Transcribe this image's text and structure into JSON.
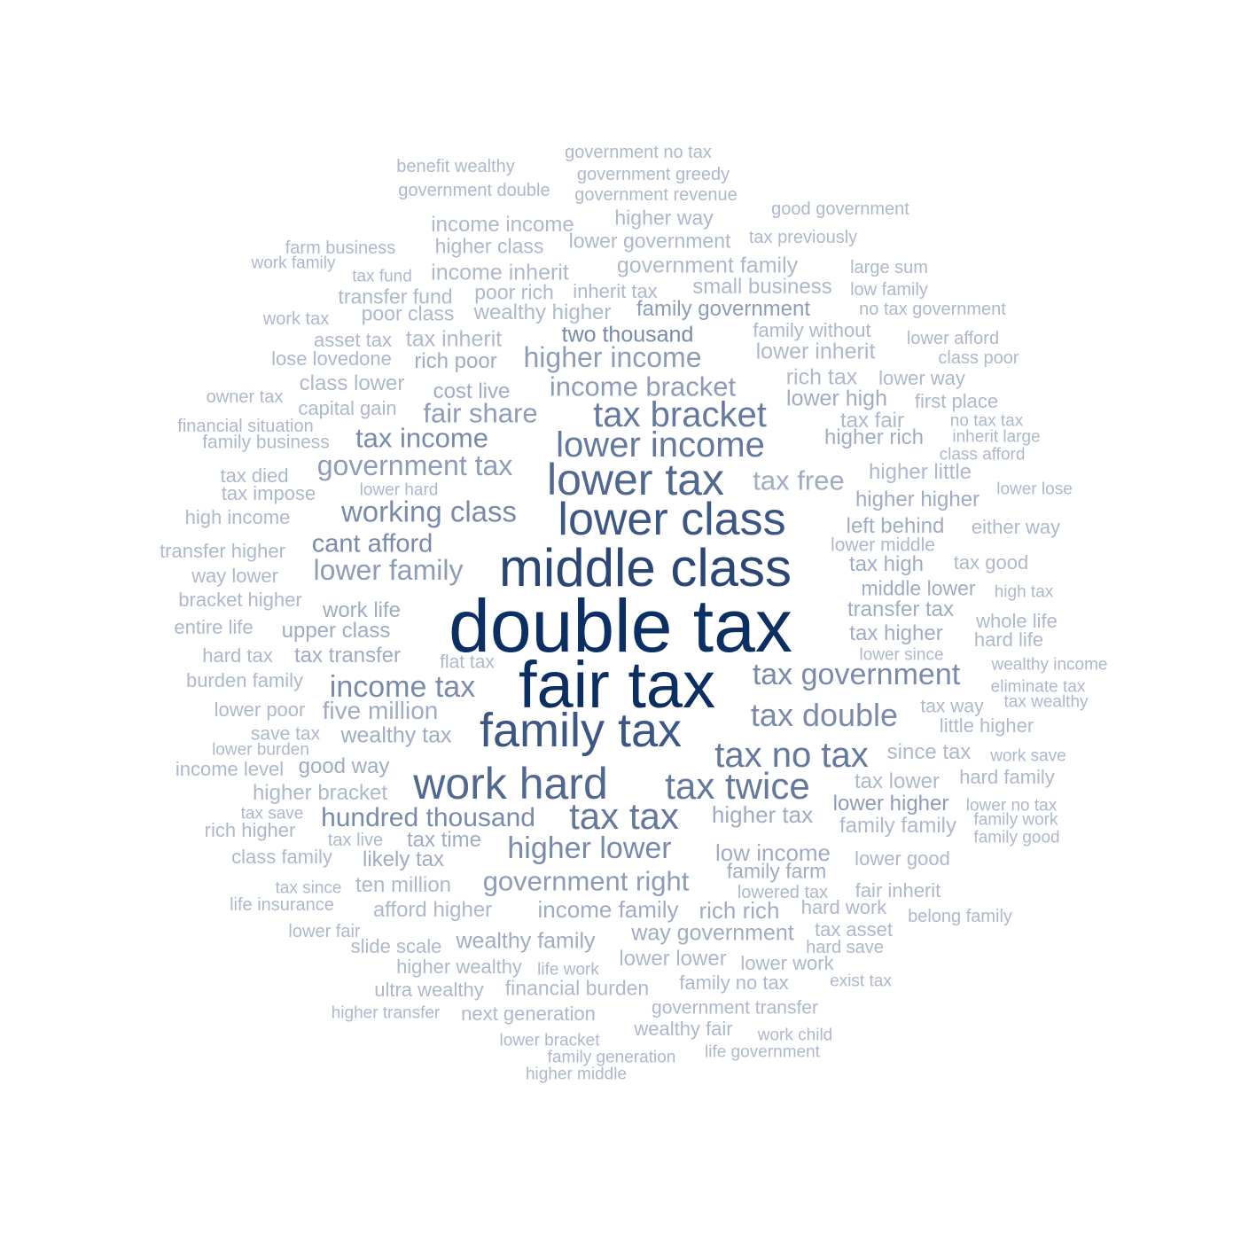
{
  "colors": {
    "background": "#ffffff",
    "tier1": "#0b2e63",
    "tier2": "#2a4675",
    "tier3": "#3d5785",
    "tier4": "#51688f",
    "tier5": "#64799c",
    "tier6": "#7a8ba9",
    "tier7": "#8e9cb6",
    "tier8": "#a0acc2",
    "tier9": "#aeb8cb"
  },
  "words": [
    {
      "text": "double tax",
      "tier": 1
    },
    {
      "text": "fair tax",
      "tier": 1
    },
    {
      "text": "middle class",
      "tier": 2
    },
    {
      "text": "family tax",
      "tier": 3
    },
    {
      "text": "lower class",
      "tier": 3
    },
    {
      "text": "lower tax",
      "tier": 4
    },
    {
      "text": "work hard",
      "tier": 4
    },
    {
      "text": "tax tax",
      "tier": 5
    },
    {
      "text": "tax twice",
      "tier": 5
    },
    {
      "text": "tax bracket",
      "tier": 5
    },
    {
      "text": "lower income",
      "tier": 5
    },
    {
      "text": "tax no tax",
      "tier": 5
    },
    {
      "text": "tax double",
      "tier": 6
    },
    {
      "text": "tax government",
      "tier": 6
    },
    {
      "text": "higher lower",
      "tier": 6
    },
    {
      "text": "income tax",
      "tier": 6
    },
    {
      "text": "working class",
      "tier": 6
    },
    {
      "text": "lower family",
      "tier": 7
    },
    {
      "text": "government tax",
      "tier": 7
    },
    {
      "text": "hundred thousand",
      "tier": 6
    },
    {
      "text": "government right",
      "tier": 7
    },
    {
      "text": "higher income",
      "tier": 7
    },
    {
      "text": "income bracket",
      "tier": 7
    },
    {
      "text": "fair share",
      "tier": 7
    },
    {
      "text": "tax income",
      "tier": 6
    },
    {
      "text": "cant afford",
      "tier": 6
    },
    {
      "text": "tax free",
      "tier": 8
    },
    {
      "text": "two thousand",
      "tier": 6
    },
    {
      "text": "government no tax",
      "tier": 9
    },
    {
      "text": "benefit wealthy",
      "tier": 9
    },
    {
      "text": "government greedy",
      "tier": 9
    },
    {
      "text": "government double",
      "tier": 9
    },
    {
      "text": "government revenue",
      "tier": 9
    },
    {
      "text": "income income",
      "tier": 9
    },
    {
      "text": "higher way",
      "tier": 9
    },
    {
      "text": "good government",
      "tier": 9
    },
    {
      "text": "higher class",
      "tier": 9
    },
    {
      "text": "lower government",
      "tier": 9
    },
    {
      "text": "tax previously",
      "tier": 9
    },
    {
      "text": "farm business",
      "tier": 9
    },
    {
      "text": "work family",
      "tier": 9
    },
    {
      "text": "tax fund",
      "tier": 9
    },
    {
      "text": "income inherit",
      "tier": 9
    },
    {
      "text": "government family",
      "tier": 9
    },
    {
      "text": "large sum",
      "tier": 9
    },
    {
      "text": "transfer fund",
      "tier": 9
    },
    {
      "text": "poor rich",
      "tier": 9
    },
    {
      "text": "inherit tax",
      "tier": 9
    },
    {
      "text": "small business",
      "tier": 9
    },
    {
      "text": "low family",
      "tier": 9
    },
    {
      "text": "work tax",
      "tier": 9
    },
    {
      "text": "poor class",
      "tier": 9
    },
    {
      "text": "wealthy higher",
      "tier": 9
    },
    {
      "text": "family government",
      "tier": 7
    },
    {
      "text": "no tax government",
      "tier": 9
    },
    {
      "text": "asset tax",
      "tier": 9
    },
    {
      "text": "tax inherit",
      "tier": 9
    },
    {
      "text": "family without",
      "tier": 9
    },
    {
      "text": "lower afford",
      "tier": 9
    },
    {
      "text": "lose lovedone",
      "tier": 9
    },
    {
      "text": "rich poor",
      "tier": 8
    },
    {
      "text": "lower inherit",
      "tier": 9
    },
    {
      "text": "class poor",
      "tier": 9
    },
    {
      "text": "owner tax",
      "tier": 9
    },
    {
      "text": "class lower",
      "tier": 9
    },
    {
      "text": "cost live",
      "tier": 8
    },
    {
      "text": "rich tax",
      "tier": 9
    },
    {
      "text": "lower way",
      "tier": 9
    },
    {
      "text": "capital gain",
      "tier": 9
    },
    {
      "text": "lower high",
      "tier": 8
    },
    {
      "text": "first place",
      "tier": 9
    },
    {
      "text": "financial situation",
      "tier": 9
    },
    {
      "text": "tax fair",
      "tier": 9
    },
    {
      "text": "no tax tax",
      "tier": 9
    },
    {
      "text": "family business",
      "tier": 9
    },
    {
      "text": "higher rich",
      "tier": 8
    },
    {
      "text": "inherit large",
      "tier": 9
    },
    {
      "text": "class afford",
      "tier": 9
    },
    {
      "text": "tax died",
      "tier": 9
    },
    {
      "text": "higher little",
      "tier": 9
    },
    {
      "text": "tax impose",
      "tier": 9
    },
    {
      "text": "lower hard",
      "tier": 9
    },
    {
      "text": "lower lose",
      "tier": 9
    },
    {
      "text": "higher higher",
      "tier": 8
    },
    {
      "text": "high income",
      "tier": 9
    },
    {
      "text": "left behind",
      "tier": 8
    },
    {
      "text": "either way",
      "tier": 9
    },
    {
      "text": "transfer higher",
      "tier": 9
    },
    {
      "text": "lower middle",
      "tier": 9
    },
    {
      "text": "tax high",
      "tier": 8
    },
    {
      "text": "tax good",
      "tier": 9
    },
    {
      "text": "way lower",
      "tier": 9
    },
    {
      "text": "middle lower",
      "tier": 8
    },
    {
      "text": "high tax",
      "tier": 9
    },
    {
      "text": "bracket higher",
      "tier": 9
    },
    {
      "text": "work life",
      "tier": 8
    },
    {
      "text": "transfer tax",
      "tier": 8
    },
    {
      "text": "whole life",
      "tier": 9
    },
    {
      "text": "entire life",
      "tier": 9
    },
    {
      "text": "upper class",
      "tier": 8
    },
    {
      "text": "tax higher",
      "tier": 8
    },
    {
      "text": "hard life",
      "tier": 9
    },
    {
      "text": "hard tax",
      "tier": 9
    },
    {
      "text": "tax transfer",
      "tier": 8
    },
    {
      "text": "flat tax",
      "tier": 9
    },
    {
      "text": "lower since",
      "tier": 9
    },
    {
      "text": "wealthy income",
      "tier": 9
    },
    {
      "text": "burden family",
      "tier": 9
    },
    {
      "text": "eliminate tax",
      "tier": 9
    },
    {
      "text": "lower poor",
      "tier": 9
    },
    {
      "text": "five million",
      "tier": 8
    },
    {
      "text": "tax way",
      "tier": 9
    },
    {
      "text": "tax wealthy",
      "tier": 9
    },
    {
      "text": "save tax",
      "tier": 9
    },
    {
      "text": "wealthy tax",
      "tier": 8
    },
    {
      "text": "little higher",
      "tier": 9
    },
    {
      "text": "lower burden",
      "tier": 9
    },
    {
      "text": "since tax",
      "tier": 9
    },
    {
      "text": "work save",
      "tier": 9
    },
    {
      "text": "income level",
      "tier": 9
    },
    {
      "text": "good way",
      "tier": 8
    },
    {
      "text": "tax lower",
      "tier": 9
    },
    {
      "text": "hard family",
      "tier": 9
    },
    {
      "text": "higher bracket",
      "tier": 9
    },
    {
      "text": "tax save",
      "tier": 9
    },
    {
      "text": "higher tax",
      "tier": 8
    },
    {
      "text": "lower higher",
      "tier": 7
    },
    {
      "text": "lower no tax",
      "tier": 9
    },
    {
      "text": "family work",
      "tier": 9
    },
    {
      "text": "rich higher",
      "tier": 9
    },
    {
      "text": "tax live",
      "tier": 9
    },
    {
      "text": "tax time",
      "tier": 8
    },
    {
      "text": "family family",
      "tier": 9
    },
    {
      "text": "family good",
      "tier": 9
    },
    {
      "text": "class family",
      "tier": 9
    },
    {
      "text": "likely tax",
      "tier": 8
    },
    {
      "text": "low income",
      "tier": 8
    },
    {
      "text": "lower good",
      "tier": 9
    },
    {
      "text": "family farm",
      "tier": 8
    },
    {
      "text": "tax since",
      "tier": 9
    },
    {
      "text": "ten million",
      "tier": 9
    },
    {
      "text": "lowered tax",
      "tier": 9
    },
    {
      "text": "fair inherit",
      "tier": 9
    },
    {
      "text": "life insurance",
      "tier": 9
    },
    {
      "text": "afford higher",
      "tier": 9
    },
    {
      "text": "income family",
      "tier": 8
    },
    {
      "text": "rich rich",
      "tier": 8
    },
    {
      "text": "hard work",
      "tier": 9
    },
    {
      "text": "belong family",
      "tier": 9
    },
    {
      "text": "lower fair",
      "tier": 9
    },
    {
      "text": "way government",
      "tier": 8
    },
    {
      "text": "tax asset",
      "tier": 9
    },
    {
      "text": "slide scale",
      "tier": 9
    },
    {
      "text": "wealthy family",
      "tier": 8
    },
    {
      "text": "hard save",
      "tier": 9
    },
    {
      "text": "higher wealthy",
      "tier": 9
    },
    {
      "text": "life work",
      "tier": 9
    },
    {
      "text": "lower lower",
      "tier": 9
    },
    {
      "text": "lower work",
      "tier": 9
    },
    {
      "text": "ultra wealthy",
      "tier": 9
    },
    {
      "text": "financial burden",
      "tier": 9
    },
    {
      "text": "family no tax",
      "tier": 9
    },
    {
      "text": "exist tax",
      "tier": 9
    },
    {
      "text": "higher transfer",
      "tier": 9
    },
    {
      "text": "next generation",
      "tier": 9
    },
    {
      "text": "government transfer",
      "tier": 9
    },
    {
      "text": "wealthy fair",
      "tier": 9
    },
    {
      "text": "work child",
      "tier": 9
    },
    {
      "text": "lower bracket",
      "tier": 9
    },
    {
      "text": "family generation",
      "tier": 9
    },
    {
      "text": "life government",
      "tier": 9
    },
    {
      "text": "higher middle",
      "tier": 9
    }
  ]
}
